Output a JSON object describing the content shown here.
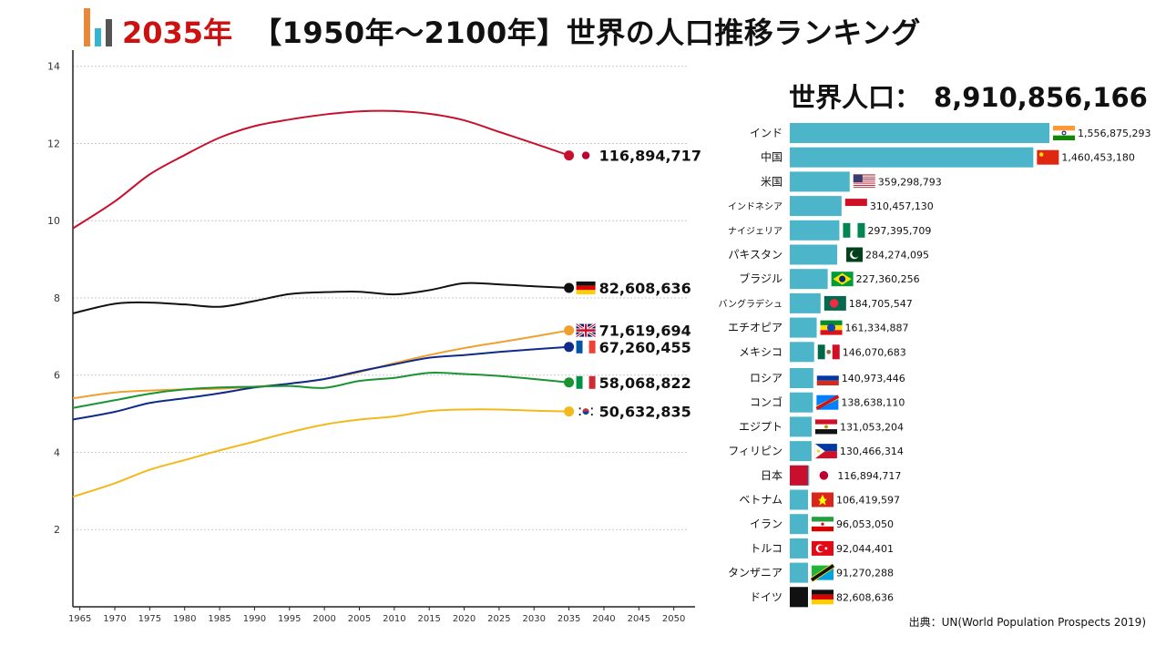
{
  "header": {
    "year": "2035年",
    "title": "【1950年〜2100年】世界の人口推移ランキング"
  },
  "world": {
    "label": "世界人口：",
    "value": "8,910,856,166"
  },
  "source": "出典：UN(World Population Prospects 2019)",
  "chart_data": [
    {
      "type": "line",
      "yticks": [
        "2",
        "4",
        "6",
        "8",
        "10",
        "12",
        "14"
      ],
      "ylim": [
        0,
        14.3
      ],
      "xticks": [
        "1965",
        "1970",
        "1975",
        "1980",
        "1985",
        "1990",
        "1995",
        "2000",
        "2005",
        "2010",
        "2015",
        "2020",
        "2025",
        "2030",
        "2035",
        "2040",
        "2045",
        "2050"
      ],
      "xlim": [
        1964,
        2052
      ],
      "grid": true,
      "series": [
        {
          "flag": "japan",
          "color": "#c8102e",
          "value_label": "116,894,717",
          "x": [
            1964,
            1970,
            1975,
            1980,
            1985,
            1990,
            1995,
            2000,
            2005,
            2010,
            2015,
            2020,
            2025,
            2030,
            2035
          ],
          "y": [
            9.8,
            10.5,
            11.2,
            11.7,
            12.15,
            12.45,
            12.62,
            12.75,
            12.83,
            12.84,
            12.77,
            12.6,
            12.3,
            12.0,
            11.69
          ]
        },
        {
          "flag": "germany",
          "color": "#111111",
          "value_label": "82,608,636",
          "x": [
            1964,
            1970,
            1975,
            1980,
            1985,
            1990,
            1995,
            2000,
            2005,
            2010,
            2015,
            2020,
            2025,
            2030,
            2035
          ],
          "y": [
            7.6,
            7.85,
            7.88,
            7.83,
            7.77,
            7.92,
            8.1,
            8.15,
            8.16,
            8.09,
            8.2,
            8.38,
            8.35,
            8.3,
            8.26
          ]
        },
        {
          "flag": "uk",
          "color": "#f0a030",
          "value_label": "71,619,694",
          "x": [
            1964,
            1970,
            1975,
            1980,
            1985,
            1990,
            1995,
            2000,
            2005,
            2010,
            2015,
            2020,
            2025,
            2030,
            2035
          ],
          "y": [
            5.4,
            5.55,
            5.6,
            5.63,
            5.65,
            5.7,
            5.78,
            5.9,
            6.08,
            6.31,
            6.52,
            6.7,
            6.85,
            7.0,
            7.16
          ]
        },
        {
          "flag": "france",
          "color": "#102a8c",
          "value_label": "67,260,455",
          "x": [
            1964,
            1970,
            1975,
            1980,
            1985,
            1990,
            1995,
            2000,
            2005,
            2010,
            2015,
            2020,
            2025,
            2030,
            2035
          ],
          "y": [
            4.85,
            5.05,
            5.28,
            5.4,
            5.53,
            5.68,
            5.78,
            5.9,
            6.1,
            6.28,
            6.45,
            6.52,
            6.6,
            6.67,
            6.73
          ]
        },
        {
          "flag": "italy",
          "color": "#1a9433",
          "value_label": "58,068,822",
          "x": [
            1964,
            1970,
            1975,
            1980,
            1985,
            1990,
            1995,
            2000,
            2005,
            2010,
            2015,
            2020,
            2025,
            2030,
            2035
          ],
          "y": [
            5.15,
            5.35,
            5.52,
            5.63,
            5.68,
            5.7,
            5.72,
            5.67,
            5.85,
            5.93,
            6.06,
            6.03,
            5.98,
            5.9,
            5.81
          ]
        },
        {
          "flag": "korea",
          "color": "#f2b81c",
          "value_label": "50,632,835",
          "x": [
            1964,
            1970,
            1975,
            1980,
            1985,
            1990,
            1995,
            2000,
            2005,
            2010,
            2015,
            2020,
            2025,
            2030,
            2035
          ],
          "y": [
            2.85,
            3.2,
            3.55,
            3.8,
            4.05,
            4.28,
            4.52,
            4.72,
            4.85,
            4.93,
            5.07,
            5.11,
            5.11,
            5.08,
            5.06
          ]
        }
      ]
    },
    {
      "type": "bar",
      "rows": [
        {
          "label": "インド",
          "flag": "india",
          "value": 1556875293,
          "value_label": "1,556,875,293"
        },
        {
          "label": "中国",
          "flag": "china",
          "value": 1460453180,
          "value_label": "1,460,453,180"
        },
        {
          "label": "米国",
          "flag": "usa",
          "value": 359298793,
          "value_label": "359,298,793"
        },
        {
          "label": "インドネシア",
          "flag": "indonesia",
          "value": 310457130,
          "value_label": "310,457,130"
        },
        {
          "label": "ナイジェリア",
          "flag": "nigeria",
          "value": 297395709,
          "value_label": "297,395,709"
        },
        {
          "label": "パキスタン",
          "flag": "pakistan",
          "value": 284274095,
          "value_label": "284,274,095"
        },
        {
          "label": "ブラジル",
          "flag": "brazil",
          "value": 227360256,
          "value_label": "227,360,256"
        },
        {
          "label": "バングラデシュ",
          "flag": "bangladesh",
          "value": 184705547,
          "value_label": "184,705,547"
        },
        {
          "label": "エチオピア",
          "flag": "ethiopia",
          "value": 161334887,
          "value_label": "161,334,887"
        },
        {
          "label": "メキシコ",
          "flag": "mexico",
          "value": 146070683,
          "value_label": "146,070,683"
        },
        {
          "label": "ロシア",
          "flag": "russia",
          "value": 140973446,
          "value_label": "140,973,446"
        },
        {
          "label": "コンゴ",
          "flag": "congo",
          "value": 138638110,
          "value_label": "138,638,110"
        },
        {
          "label": "エジプト",
          "flag": "egypt",
          "value": 131053204,
          "value_label": "131,053,204"
        },
        {
          "label": "フィリピン",
          "flag": "philippines",
          "value": 130466314,
          "value_label": "130,466,314"
        },
        {
          "label": "日本",
          "flag": "japan",
          "value": 116894717,
          "value_label": "116,894,717",
          "highlight": "#c8102e"
        },
        {
          "label": "ベトナム",
          "flag": "vietnam",
          "value": 106419597,
          "value_label": "106,419,597"
        },
        {
          "label": "イラン",
          "flag": "iran",
          "value": 96053050,
          "value_label": "96,053,050"
        },
        {
          "label": "トルコ",
          "flag": "turkey",
          "value": 92044401,
          "value_label": "92,044,401"
        },
        {
          "label": "タンザニア",
          "flag": "tanzania",
          "value": 91270288,
          "value_label": "91,270,288"
        },
        {
          "label": "ドイツ",
          "flag": "germany",
          "value": 82608636,
          "value_label": "82,608,636",
          "highlight": "#111111"
        }
      ],
      "bar_color": "#4db5c9"
    }
  ]
}
